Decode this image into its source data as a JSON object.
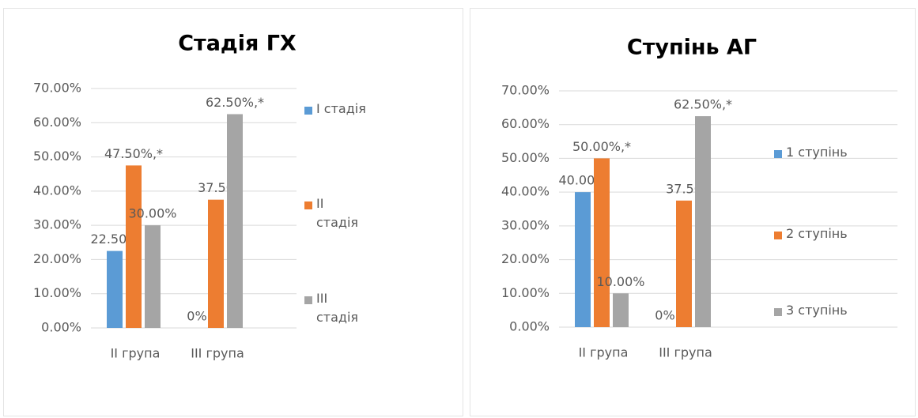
{
  "chart_data": [
    {
      "type": "bar",
      "title": "Стадія ГХ",
      "categories": [
        "ІІ група",
        "ІІІ група"
      ],
      "series": [
        {
          "name": "І стадія",
          "color": "#5b9bd5",
          "values": [
            22.5,
            0
          ],
          "value_labels": [
            "22.50%",
            "0%"
          ]
        },
        {
          "name": "ІІ стадія",
          "color": "#ed7d31",
          "values": [
            47.5,
            37.5
          ],
          "value_labels": [
            "47.50%,*",
            "37.50"
          ]
        },
        {
          "name": "ІІІ стадія",
          "color": "#a5a5a5",
          "values": [
            30,
            62.5
          ],
          "value_labels": [
            "30.00%",
            "62.50%,*"
          ]
        }
      ],
      "ylim": [
        0,
        70
      ],
      "yticks": [
        {
          "value": 0,
          "label": "0.00%"
        },
        {
          "value": 10,
          "label": "10.00%"
        },
        {
          "value": 20,
          "label": "20.00%"
        },
        {
          "value": 30,
          "label": "30.00%"
        },
        {
          "value": 40,
          "label": "40.00%"
        },
        {
          "value": 50,
          "label": "50.00%"
        },
        {
          "value": 60,
          "label": "60.00%"
        },
        {
          "value": 70,
          "label": "70.00%"
        }
      ],
      "grid": true,
      "legend": "right"
    },
    {
      "type": "bar",
      "title": "Ступінь АГ",
      "categories": [
        "ІІ група",
        "ІІІ група"
      ],
      "series": [
        {
          "name": "1 ступінь",
          "color": "#5b9bd5",
          "values": [
            40,
            0
          ],
          "value_labels": [
            "40.00%",
            "0%"
          ]
        },
        {
          "name": "2 ступінь",
          "color": "#ed7d31",
          "values": [
            50,
            37.5
          ],
          "value_labels": [
            "50.00%,*",
            "37.50"
          ]
        },
        {
          "name": "3 ступінь",
          "color": "#a5a5a5",
          "values": [
            10,
            62.5
          ],
          "value_labels": [
            "10.00%",
            "62.50%,*"
          ]
        }
      ],
      "ylim": [
        0,
        70
      ],
      "yticks": [
        {
          "value": 0,
          "label": "0.00%"
        },
        {
          "value": 10,
          "label": "10.00%"
        },
        {
          "value": 20,
          "label": "20.00%"
        },
        {
          "value": 30,
          "label": "30.00%"
        },
        {
          "value": 40,
          "label": "40.00%"
        },
        {
          "value": 50,
          "label": "50.00%"
        },
        {
          "value": 60,
          "label": "60.00%"
        },
        {
          "value": 70,
          "label": "70.00%"
        }
      ],
      "grid": true,
      "legend": "right"
    }
  ]
}
